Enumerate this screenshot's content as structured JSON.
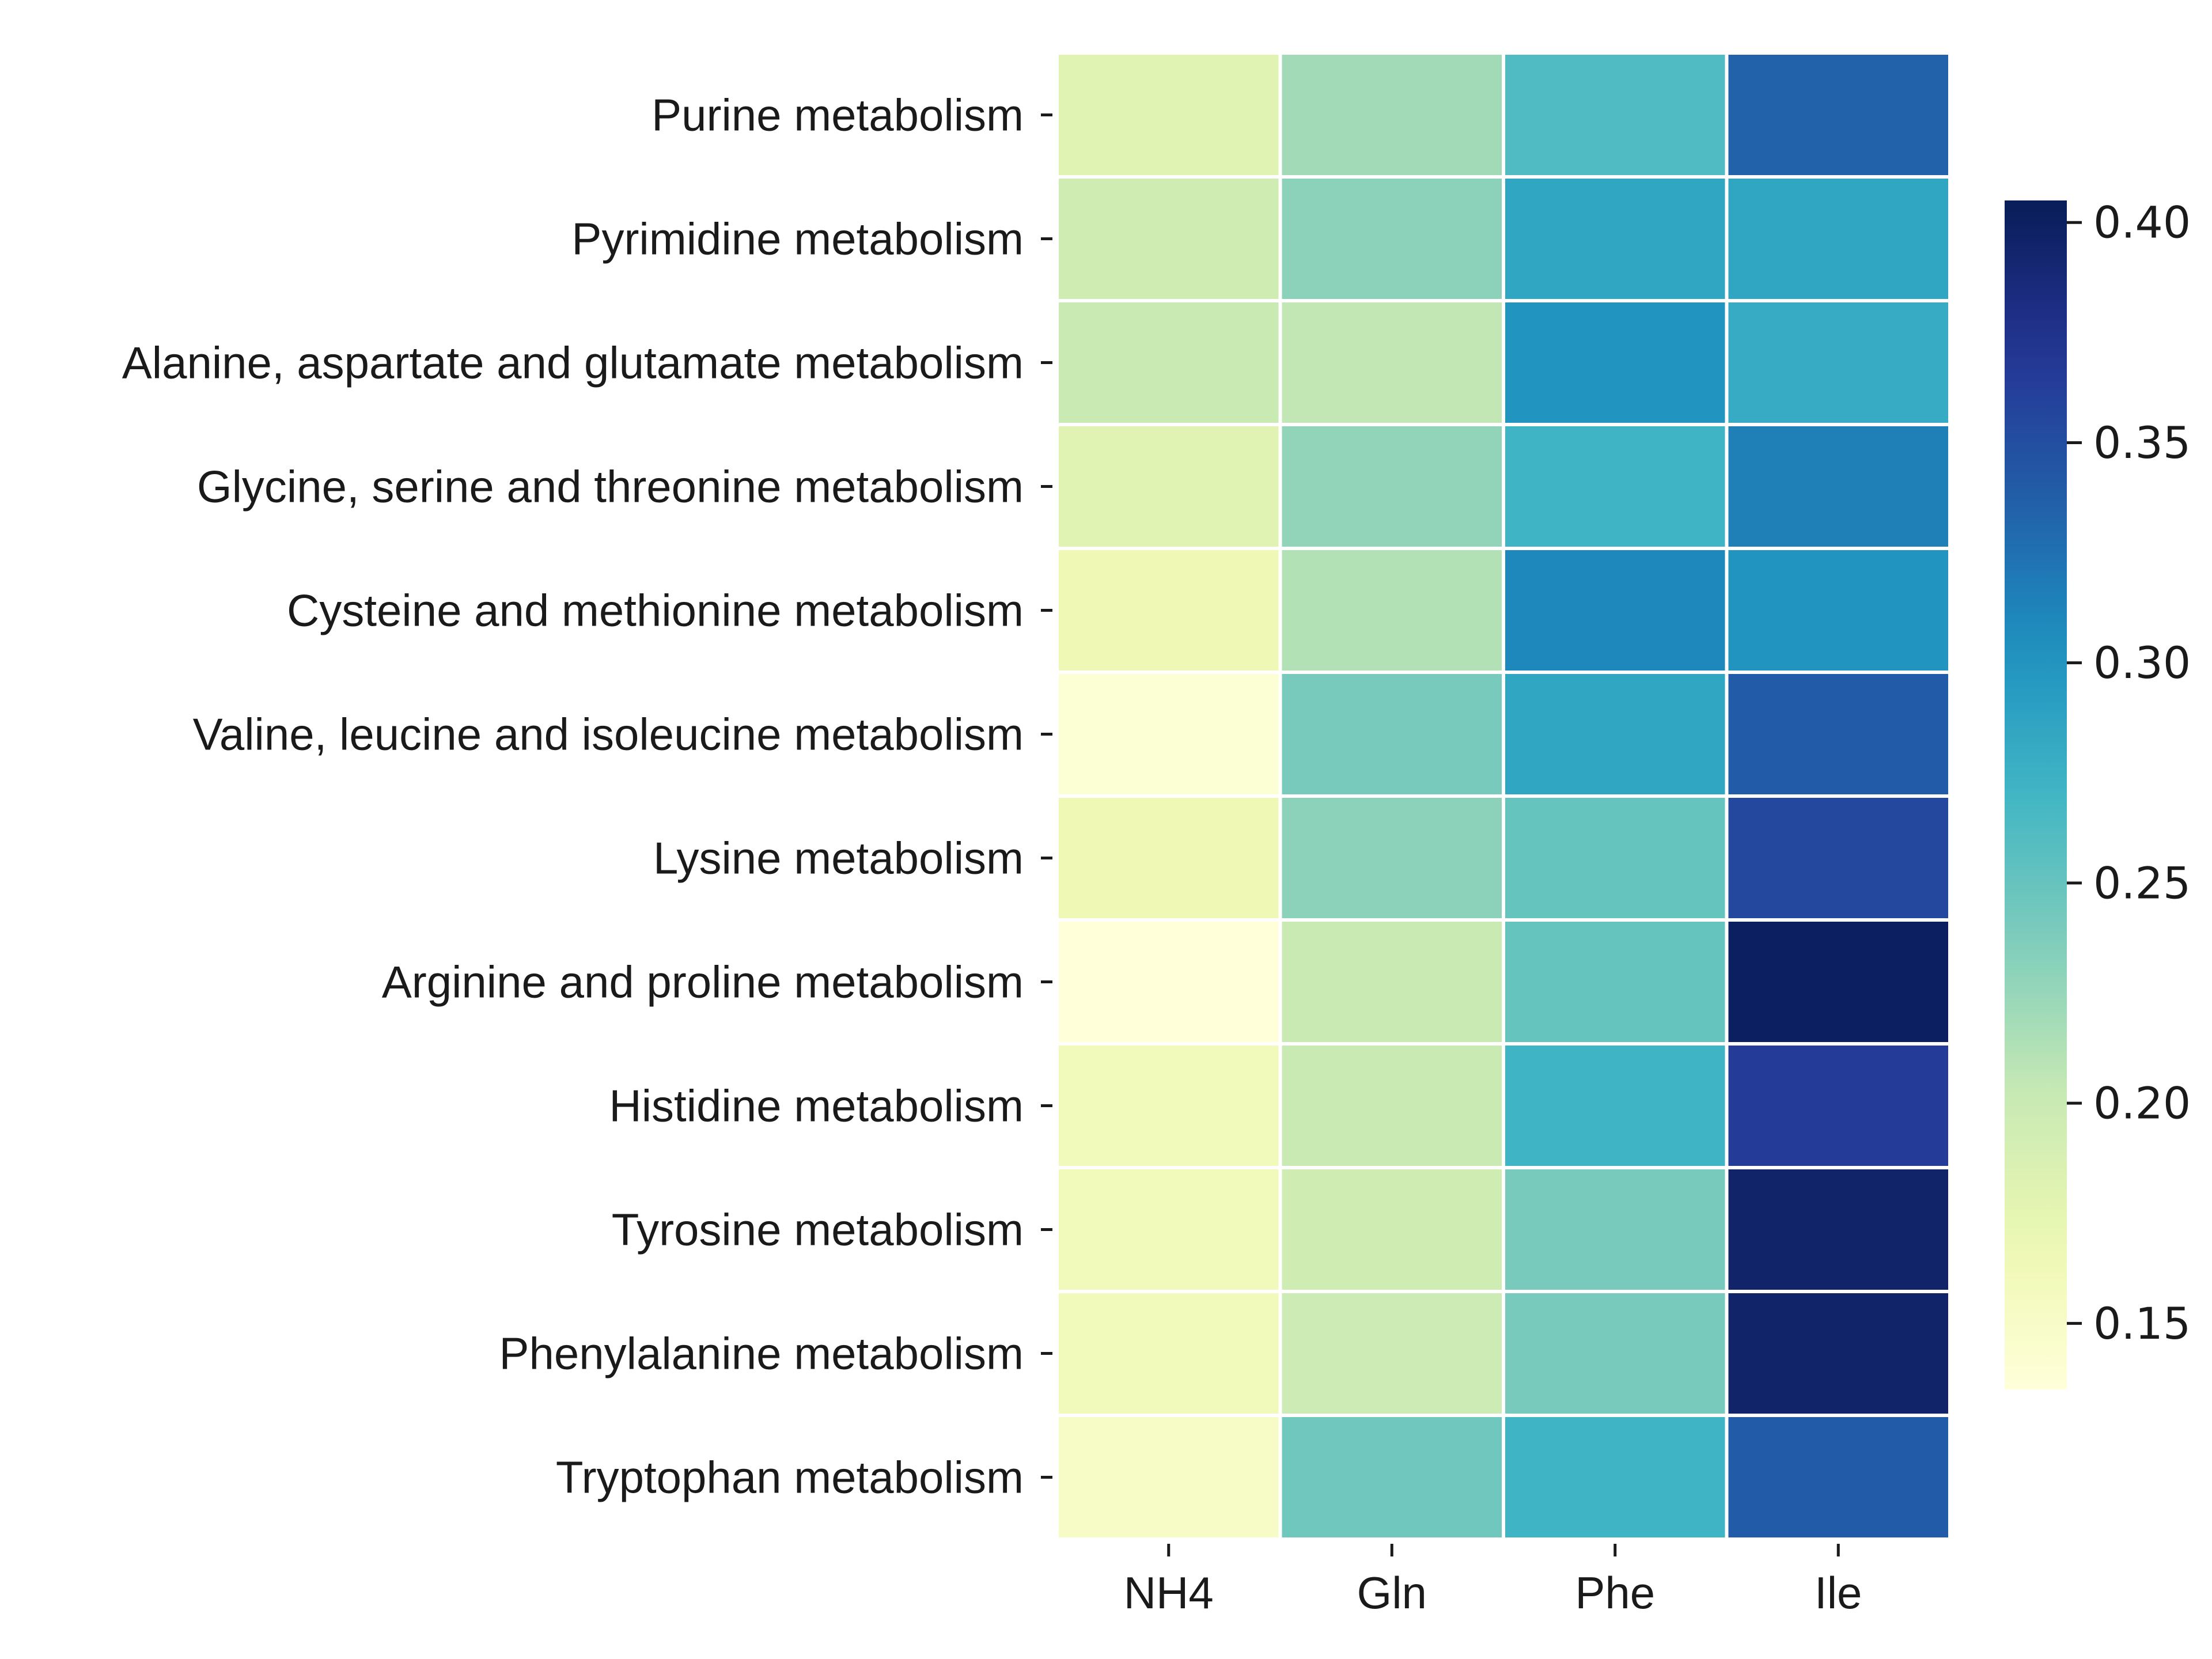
{
  "chart_data": {
    "type": "heatmap",
    "title": "",
    "xlabel": "",
    "ylabel": "",
    "columns": [
      "NH4",
      "Gln",
      "Phe",
      "Ile"
    ],
    "rows": [
      "Purine metabolism",
      "Pyrimidine metabolism",
      "Alanine, aspartate and glutamate metabolism",
      "Glycine, serine and threonine metabolism",
      "Cysteine and methionine metabolism",
      "Valine, leucine and isoleucine metabolism",
      "Lysine metabolism",
      "Arginine and proline metabolism",
      "Histidine metabolism",
      "Tyrosine metabolism",
      "Phenylalanine metabolism",
      "Tryptophan metabolism"
    ],
    "values": [
      [
        0.18,
        0.22,
        0.262,
        0.335
      ],
      [
        0.195,
        0.23,
        0.285,
        0.285
      ],
      [
        0.2,
        0.205,
        0.3,
        0.28
      ],
      [
        0.18,
        0.228,
        0.272,
        0.315
      ],
      [
        0.165,
        0.212,
        0.31,
        0.3
      ],
      [
        0.14,
        0.24,
        0.285,
        0.34
      ],
      [
        0.165,
        0.23,
        0.25,
        0.355
      ],
      [
        0.135,
        0.2,
        0.25,
        0.4
      ],
      [
        0.16,
        0.2,
        0.272,
        0.365
      ],
      [
        0.16,
        0.195,
        0.24,
        0.395
      ],
      [
        0.16,
        0.197,
        0.24,
        0.395
      ],
      [
        0.15,
        0.245,
        0.272,
        0.34
      ]
    ],
    "colorbar": {
      "colormap": "YlGnBu",
      "range": [
        0.135,
        0.405
      ],
      "ticks": [
        0.15,
        0.2,
        0.25,
        0.3,
        0.35,
        0.4
      ],
      "tick_labels": [
        "0.15",
        "0.20",
        "0.25",
        "0.30",
        "0.35",
        "0.40"
      ]
    }
  }
}
